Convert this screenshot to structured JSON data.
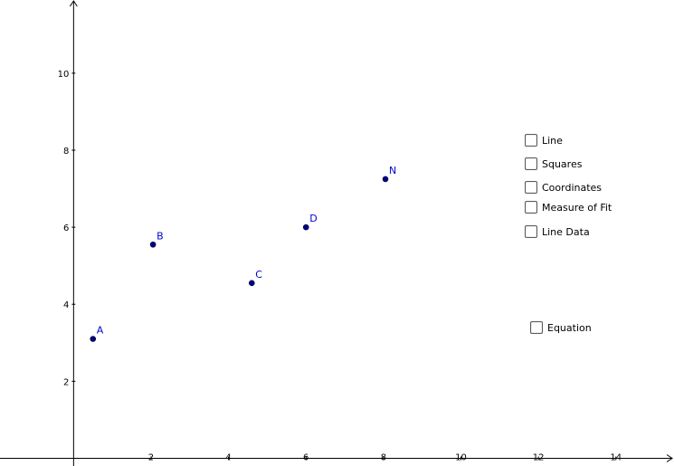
{
  "chart_data": {
    "type": "scatter",
    "xlim": [
      -1.9,
      15.5
    ],
    "ylim": [
      -0.2,
      11.9
    ],
    "x_ticks": [
      2,
      4,
      6,
      8,
      10,
      12,
      14
    ],
    "y_ticks": [
      2,
      4,
      6,
      8,
      10
    ],
    "grid": false,
    "points": [
      {
        "label": "A",
        "x": 0.5,
        "y": 3.1
      },
      {
        "label": "B",
        "x": 2.05,
        "y": 5.55
      },
      {
        "label": "C",
        "x": 4.6,
        "y": 4.55
      },
      {
        "label": "D",
        "x": 6.0,
        "y": 6.0
      },
      {
        "label": "N",
        "x": 8.05,
        "y": 7.25
      }
    ],
    "point_color": "#00008b",
    "label_color": "#0000cc"
  },
  "controls": {
    "line": {
      "label": "Line",
      "checked": false
    },
    "squares": {
      "label": "Squares",
      "checked": false
    },
    "coordinates": {
      "label": "Coordinates",
      "checked": false
    },
    "measure_of_fit": {
      "label": "Measure of Fit",
      "checked": false
    },
    "line_data": {
      "label": "Line Data",
      "checked": false
    },
    "equation": {
      "label": "Equation",
      "checked": false
    }
  }
}
